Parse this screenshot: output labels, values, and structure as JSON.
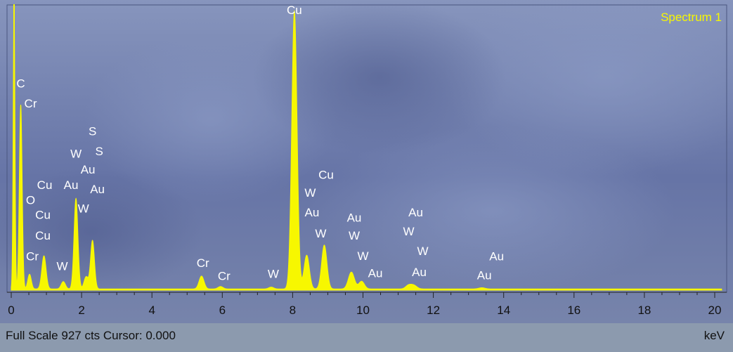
{
  "status": {
    "full_scale_text": "Full Scale 927 cts Cursor: 0.000",
    "x_unit": "keV"
  },
  "colors": {
    "spectrum": "#f7f700",
    "background_top": "#8a99c0",
    "background_bottom": "#5d6a9e",
    "label_text": "#ffffff",
    "title_text": "#f7f700"
  },
  "chart_data": {
    "type": "area",
    "title": "Spectrum 1",
    "xlabel": "keV",
    "ylabel": "",
    "xlim": [
      0,
      20.2
    ],
    "ylim": [
      0,
      927
    ],
    "full_scale_cts": 927,
    "xticks": [
      0,
      2,
      4,
      6,
      8,
      10,
      12,
      14,
      16,
      18,
      20
    ],
    "peaks": [
      {
        "x": 0.08,
        "y": 927,
        "w": 0.025
      },
      {
        "x": 0.27,
        "y": 600,
        "w": 0.04
      },
      {
        "x": 0.52,
        "y": 48,
        "w": 0.05
      },
      {
        "x": 0.93,
        "y": 108,
        "w": 0.06
      },
      {
        "x": 1.48,
        "y": 24,
        "w": 0.06
      },
      {
        "x": 1.84,
        "y": 295,
        "w": 0.055
      },
      {
        "x": 2.13,
        "y": 40,
        "w": 0.06
      },
      {
        "x": 2.31,
        "y": 158,
        "w": 0.055
      },
      {
        "x": 5.41,
        "y": 42,
        "w": 0.07
      },
      {
        "x": 5.95,
        "y": 8,
        "w": 0.07
      },
      {
        "x": 7.39,
        "y": 6,
        "w": 0.07
      },
      {
        "x": 8.05,
        "y": 905,
        "w": 0.075
      },
      {
        "x": 8.4,
        "y": 110,
        "w": 0.075
      },
      {
        "x": 8.9,
        "y": 143,
        "w": 0.075
      },
      {
        "x": 9.67,
        "y": 55,
        "w": 0.085
      },
      {
        "x": 9.96,
        "y": 25,
        "w": 0.08
      },
      {
        "x": 11.29,
        "y": 11,
        "w": 0.08
      },
      {
        "x": 11.44,
        "y": 12,
        "w": 0.09
      },
      {
        "x": 13.38,
        "y": 4,
        "w": 0.09
      }
    ],
    "baseline": 4,
    "annotations": [
      {
        "text": "Cu",
        "x": 8.05,
        "y": 900
      },
      {
        "text": "C",
        "x": 0.27,
        "y": 660
      },
      {
        "text": "Cr",
        "x": 0.55,
        "y": 595
      },
      {
        "text": "S",
        "x": 2.31,
        "y": 505
      },
      {
        "text": "W",
        "x": 1.84,
        "y": 432
      },
      {
        "text": "S",
        "x": 2.5,
        "y": 440
      },
      {
        "text": "Au",
        "x": 2.18,
        "y": 380
      },
      {
        "text": "Cu",
        "x": 0.95,
        "y": 330
      },
      {
        "text": "Au",
        "x": 1.7,
        "y": 330
      },
      {
        "text": "Au",
        "x": 2.45,
        "y": 316
      },
      {
        "text": "O",
        "x": 0.55,
        "y": 280
      },
      {
        "text": "W",
        "x": 2.05,
        "y": 253
      },
      {
        "text": "Cu",
        "x": 0.9,
        "y": 232
      },
      {
        "text": "Cu",
        "x": 0.9,
        "y": 165
      },
      {
        "text": "Cr",
        "x": 0.6,
        "y": 97
      },
      {
        "text": "W",
        "x": 1.45,
        "y": 65
      },
      {
        "text": "Cr",
        "x": 5.45,
        "y": 75
      },
      {
        "text": "Cr",
        "x": 6.05,
        "y": 33
      },
      {
        "text": "W",
        "x": 7.45,
        "y": 40
      },
      {
        "text": "Cu",
        "x": 8.95,
        "y": 363
      },
      {
        "text": "W",
        "x": 8.5,
        "y": 304
      },
      {
        "text": "Au",
        "x": 8.55,
        "y": 240
      },
      {
        "text": "W",
        "x": 8.8,
        "y": 172
      },
      {
        "text": "Au",
        "x": 9.75,
        "y": 223
      },
      {
        "text": "W",
        "x": 9.75,
        "y": 165
      },
      {
        "text": "W",
        "x": 10.0,
        "y": 98
      },
      {
        "text": "Au",
        "x": 10.35,
        "y": 42
      },
      {
        "text": "Au",
        "x": 11.5,
        "y": 240
      },
      {
        "text": "W",
        "x": 11.3,
        "y": 179
      },
      {
        "text": "W",
        "x": 11.7,
        "y": 115
      },
      {
        "text": "Au",
        "x": 11.6,
        "y": 46
      },
      {
        "text": "Au",
        "x": 13.8,
        "y": 97
      },
      {
        "text": "Au",
        "x": 13.45,
        "y": 36
      }
    ]
  }
}
